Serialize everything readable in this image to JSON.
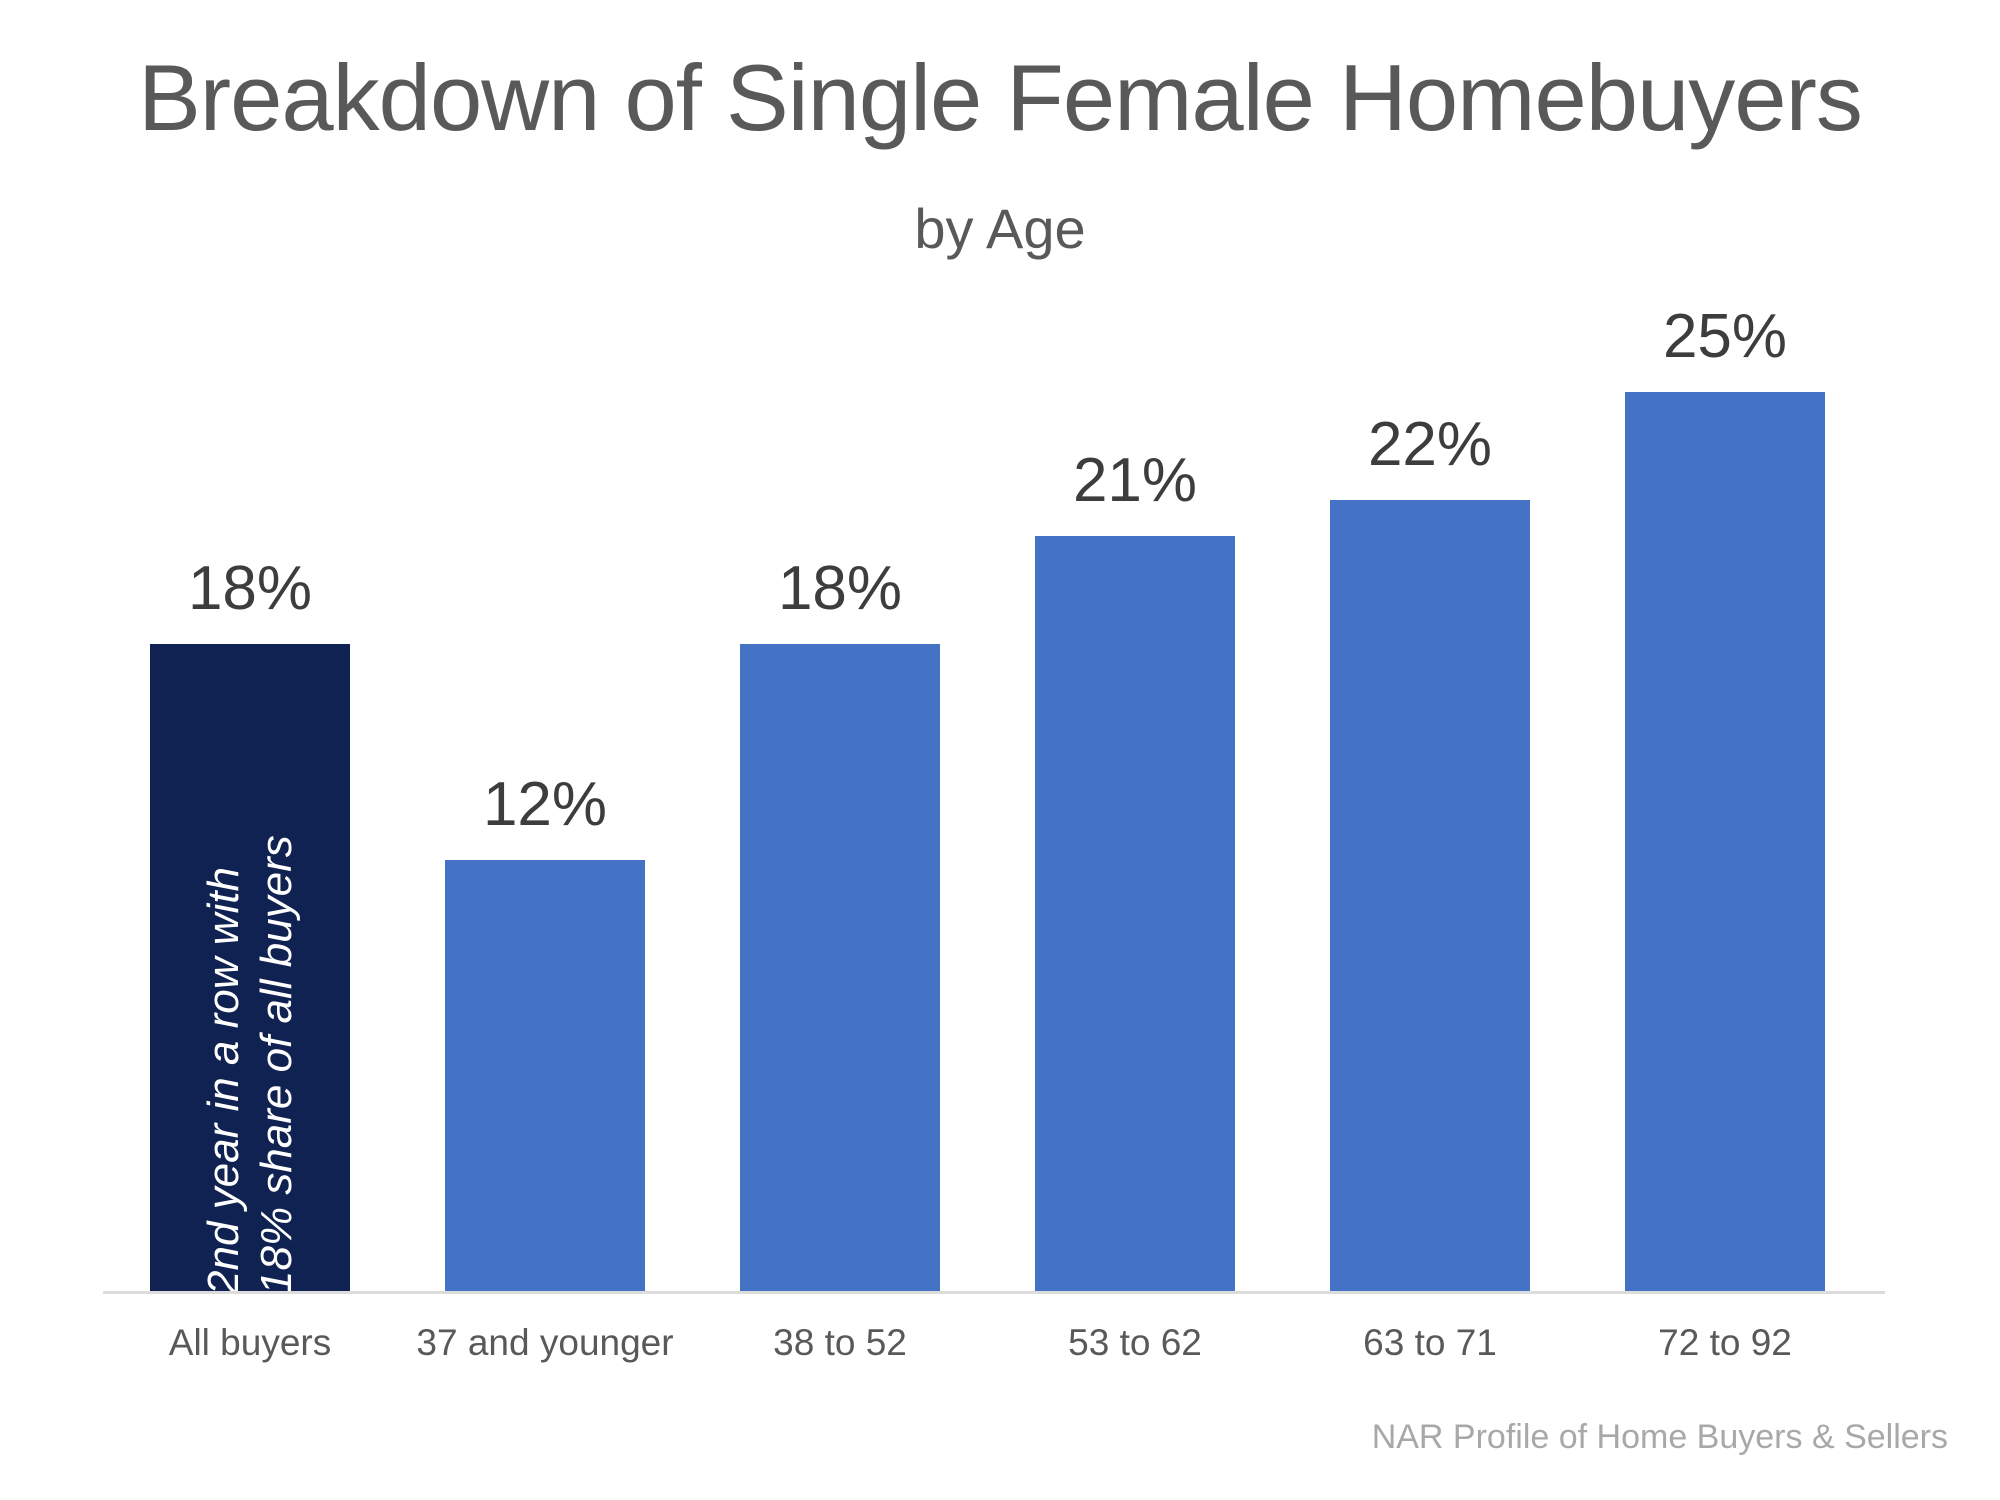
{
  "chart_data": {
    "type": "bar",
    "title": "Breakdown of Single Female Homebuyers",
    "subtitle": "by Age",
    "categories": [
      "All buyers",
      "37 and younger",
      "38 to 52",
      "53 to 62",
      "63 to 71",
      "72 to 92"
    ],
    "values": [
      18,
      12,
      18,
      21,
      22,
      25
    ],
    "labels": [
      "18%",
      "12%",
      "18%",
      "21%",
      "22%",
      "25%"
    ],
    "xlabel": "",
    "ylabel": "",
    "ylim": [
      0,
      25
    ],
    "grid": false,
    "legend": false,
    "highlight_index": 0,
    "annotation_lines": [
      "2nd year in a row with",
      "18% share of all buyers"
    ],
    "colors": {
      "highlight": "#102251",
      "default": "#4472C4",
      "axis_line": "#DCDCDC",
      "label_text": "#3d3d3d",
      "title_text": "#595959",
      "annotation_text": "#ffffff"
    }
  },
  "source_credit": "NAR Profile of Home Buyers & Sellers"
}
